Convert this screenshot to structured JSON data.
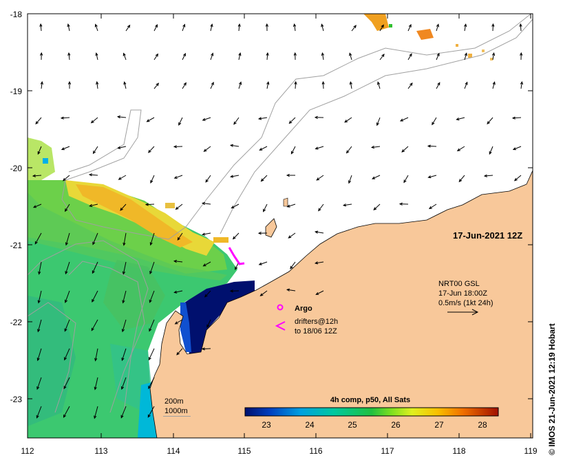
{
  "map": {
    "lon_ticks": [
      "112",
      "113",
      "114",
      "115",
      "116",
      "117",
      "118",
      "119"
    ],
    "lat_ticks": [
      "-18",
      "-19",
      "-20",
      "-21",
      "-22",
      "-23"
    ],
    "lon_range": [
      112,
      119
    ],
    "lat_range": [
      -23.55,
      -18
    ],
    "date_stamp": "17-Jun-2021 12Z",
    "credit": "© IMOS 21-Jun-2021 12:19 Hobart"
  },
  "legend": {
    "argo_label": "Argo",
    "drifters_line1": "drifters@12h",
    "drifters_line2": "to 18/06 12Z",
    "current_line1": "NRT00 GSL",
    "current_line2": "17-Jun 18:00Z",
    "current_line3": "0.5m/s (1kt 24h)",
    "depth_200": "200m",
    "depth_1000": "1000m"
  },
  "colorbar": {
    "title": "4h comp, p50, All Sats",
    "ticks": [
      "23",
      "24",
      "25",
      "26",
      "27",
      "28"
    ],
    "range": [
      22.5,
      28.5
    ]
  },
  "colors": {
    "land": "#f8c89a",
    "sst_warm": "#f0b020",
    "sst_mid": "#70d050",
    "sst_cool": "#40c870",
    "sst_cold": "#00106e",
    "argo": "#ff00ff",
    "drifter": "#ff00ff"
  }
}
